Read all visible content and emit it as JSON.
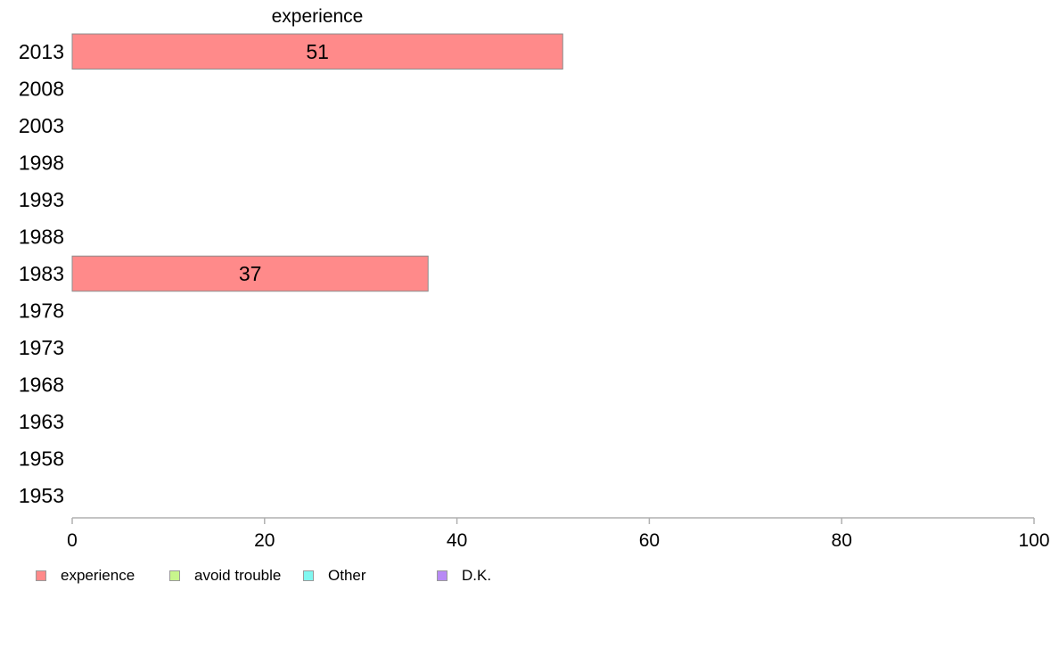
{
  "chart_data": {
    "type": "bar",
    "orientation": "horizontal",
    "stacked": true,
    "title": "experience",
    "categories": [
      "2013",
      "2008",
      "2003",
      "1998",
      "1993",
      "1988",
      "1983",
      "1978",
      "1973",
      "1968",
      "1963",
      "1958",
      "1953"
    ],
    "series": [
      {
        "name": "experience",
        "color": "#ff8a8a",
        "values": [
          51,
          null,
          null,
          null,
          null,
          null,
          37,
          null,
          null,
          null,
          null,
          null,
          null
        ]
      },
      {
        "name": "avoid trouble",
        "color": "#c8f58c",
        "values": [
          null,
          null,
          null,
          null,
          null,
          null,
          null,
          null,
          null,
          null,
          null,
          null,
          null
        ]
      },
      {
        "name": "Other",
        "color": "#80f7f0",
        "values": [
          null,
          null,
          null,
          null,
          null,
          null,
          null,
          null,
          null,
          null,
          null,
          null,
          null
        ]
      },
      {
        "name": "D.K.",
        "color": "#b88af5",
        "values": [
          null,
          null,
          null,
          null,
          null,
          null,
          null,
          null,
          null,
          null,
          null,
          null,
          null
        ]
      }
    ],
    "xlim": [
      0,
      100
    ],
    "xticks": [
      0,
      20,
      40,
      60,
      80,
      100
    ],
    "xlabel": "",
    "ylabel": "",
    "grid": false,
    "legend_position": "bottom-left"
  }
}
